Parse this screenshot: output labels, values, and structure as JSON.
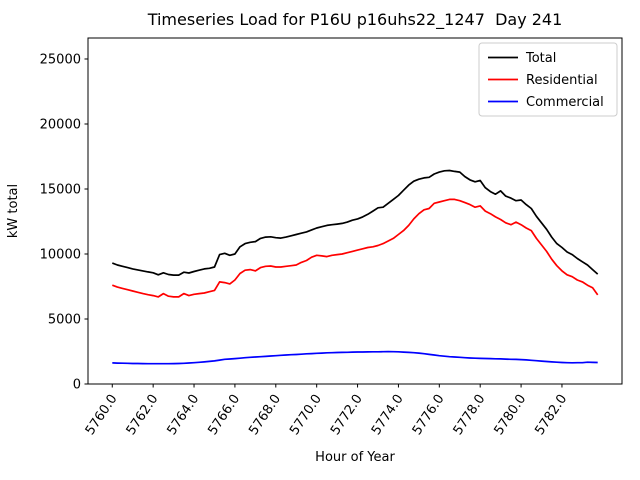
{
  "chart_data": {
    "type": "line",
    "title": "Timeseries Load for P16U p16uhs22_1247  Day 241",
    "xlabel": "Hour of Year",
    "ylabel": "kW total",
    "grid": false,
    "legend_position": "upper right",
    "x_start": 5760.0,
    "x_step": 0.25,
    "xlim": [
      5758.8125,
      5784.9375
    ],
    "ylim": [
      0,
      26614
    ],
    "x_tick_values": [
      5760,
      5762,
      5764,
      5766,
      5768,
      5770,
      5772,
      5774,
      5776,
      5778,
      5780,
      5782
    ],
    "x_tick_labels": [
      "5760.0",
      "5762.0",
      "5764.0",
      "5766.0",
      "5768.0",
      "5770.0",
      "5772.0",
      "5774.0",
      "5776.0",
      "5778.0",
      "5780.0",
      "5782.0"
    ],
    "x_tick_rotation_deg": 56,
    "y_tick_values": [
      0,
      5000,
      10000,
      15000,
      20000,
      25000
    ],
    "y_tick_labels": [
      "0",
      "5000",
      "10000",
      "15000",
      "20000",
      "25000"
    ],
    "series": [
      {
        "name": "Total",
        "color": "#000000",
        "values": [
          9300,
          9150,
          9050,
          8950,
          8850,
          8780,
          8700,
          8620,
          8550,
          8400,
          8550,
          8420,
          8380,
          8380,
          8600,
          8540,
          8650,
          8750,
          8850,
          8900,
          9000,
          9950,
          10050,
          9900,
          10000,
          10550,
          10800,
          10900,
          10950,
          11200,
          11300,
          11320,
          11250,
          11220,
          11300,
          11400,
          11500,
          11600,
          11700,
          11850,
          12000,
          12100,
          12200,
          12250,
          12300,
          12350,
          12450,
          12600,
          12700,
          12850,
          13050,
          13300,
          13550,
          13600,
          13900,
          14200,
          14500,
          14900,
          15300,
          15600,
          15750,
          15850,
          15900,
          16150,
          16300,
          16400,
          16420,
          16350,
          16300,
          15950,
          15700,
          15550,
          15650,
          15100,
          14800,
          14600,
          14850,
          14450,
          14300,
          14100,
          14150,
          13800,
          13500,
          12900,
          12400,
          11900,
          11300,
          10800,
          10500,
          10150,
          9950,
          9650,
          9400,
          9150,
          8800,
          8450
        ]
      },
      {
        "name": "Residential",
        "color": "#ff0000",
        "values": [
          7600,
          7450,
          7350,
          7250,
          7150,
          7050,
          6950,
          6870,
          6800,
          6700,
          6950,
          6750,
          6700,
          6700,
          6950,
          6800,
          6900,
          6950,
          7000,
          7100,
          7200,
          7850,
          7800,
          7700,
          8000,
          8500,
          8750,
          8800,
          8700,
          8950,
          9050,
          9080,
          9000,
          9000,
          9050,
          9100,
          9150,
          9350,
          9500,
          9750,
          9900,
          9850,
          9800,
          9900,
          9950,
          10000,
          10100,
          10200,
          10300,
          10400,
          10500,
          10550,
          10650,
          10800,
          11000,
          11200,
          11500,
          11800,
          12200,
          12700,
          13100,
          13400,
          13500,
          13900,
          14000,
          14100,
          14200,
          14200,
          14100,
          13950,
          13800,
          13600,
          13700,
          13300,
          13100,
          12850,
          12650,
          12400,
          12250,
          12450,
          12250,
          12000,
          11800,
          11200,
          10700,
          10200,
          9600,
          9100,
          8700,
          8400,
          8250,
          8000,
          7850,
          7600,
          7400,
          6850
        ]
      },
      {
        "name": "Commercial",
        "color": "#0000ff",
        "values": [
          1620,
          1610,
          1600,
          1590,
          1580,
          1575,
          1570,
          1565,
          1560,
          1560,
          1560,
          1565,
          1570,
          1580,
          1590,
          1615,
          1640,
          1670,
          1700,
          1740,
          1780,
          1840,
          1900,
          1925,
          1950,
          1985,
          2020,
          2050,
          2080,
          2100,
          2120,
          2150,
          2180,
          2205,
          2230,
          2250,
          2270,
          2295,
          2320,
          2340,
          2360,
          2380,
          2400,
          2410,
          2420,
          2430,
          2440,
          2450,
          2460,
          2465,
          2470,
          2475,
          2480,
          2485,
          2490,
          2485,
          2480,
          2455,
          2430,
          2405,
          2380,
          2330,
          2280,
          2230,
          2180,
          2140,
          2100,
          2075,
          2050,
          2025,
          2000,
          1985,
          1970,
          1960,
          1950,
          1940,
          1930,
          1915,
          1900,
          1890,
          1880,
          1850,
          1820,
          1790,
          1760,
          1730,
          1700,
          1675,
          1650,
          1640,
          1630,
          1635,
          1640,
          1680,
          1660,
          1650
        ]
      }
    ],
    "legend": {
      "entries": [
        "Total",
        "Residential",
        "Commercial"
      ],
      "border_color": "#cccccc",
      "background_color": "#ffffff"
    }
  }
}
